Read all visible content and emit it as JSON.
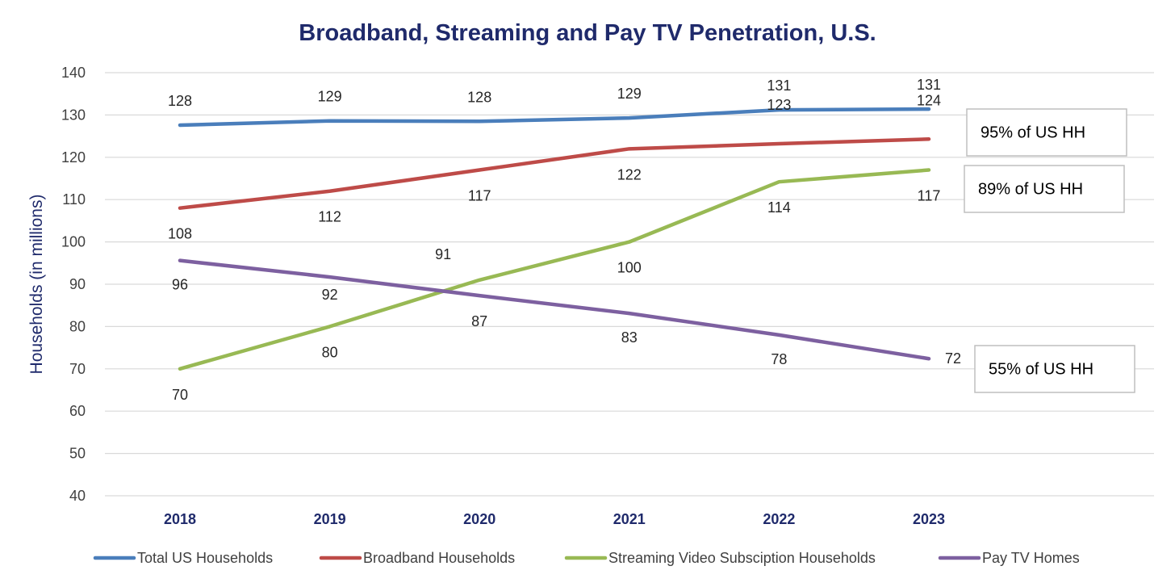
{
  "chart_data": {
    "type": "line",
    "title": "Broadband, Streaming and Pay TV Penetration, U.S.",
    "xlabel": "",
    "ylabel": "Households (in millions)",
    "ylim": [
      40,
      140
    ],
    "yticks": [
      40,
      50,
      60,
      70,
      80,
      90,
      100,
      110,
      120,
      130,
      140
    ],
    "categories": [
      "2018",
      "2019",
      "2020",
      "2021",
      "2022",
      "2023"
    ],
    "grid": true,
    "legend_position": "bottom",
    "series": [
      {
        "name": "Total US Households",
        "color": "#4a7ebb",
        "values": [
          127.6,
          128.6,
          128.5,
          129.3,
          131.2,
          131.4
        ],
        "labels": [
          "128",
          "129",
          "128",
          "129",
          "131",
          "131"
        ],
        "label_position": "above"
      },
      {
        "name": "Broadband Households",
        "color": "#be4b48",
        "values": [
          108,
          112,
          117,
          122,
          123.2,
          124.3
        ],
        "labels": [
          "108",
          "112",
          "117",
          "122",
          "123",
          "124"
        ],
        "label_position": "below"
      },
      {
        "name": "Streaming Video Subsciption Households",
        "color": "#98b954",
        "values": [
          70,
          80,
          91,
          100,
          114.2,
          117
        ],
        "labels": [
          "70",
          "80",
          "91",
          "100",
          "114",
          "117"
        ],
        "label_position": "mixed"
      },
      {
        "name": "Pay TV Homes",
        "color": "#7d60a0",
        "values": [
          95.6,
          91.7,
          87.3,
          83.1,
          78,
          72.4
        ],
        "labels": [
          "96",
          "92",
          "87",
          "83",
          "78",
          "72"
        ],
        "label_position": "mixed"
      }
    ],
    "annotations": [
      {
        "text": "95% of US HH",
        "series": "Total US Households"
      },
      {
        "text": "89% of US HH",
        "series": "Streaming Video Subsciption Households"
      },
      {
        "text": "55% of US HH",
        "series": "Pay TV Homes"
      }
    ]
  }
}
